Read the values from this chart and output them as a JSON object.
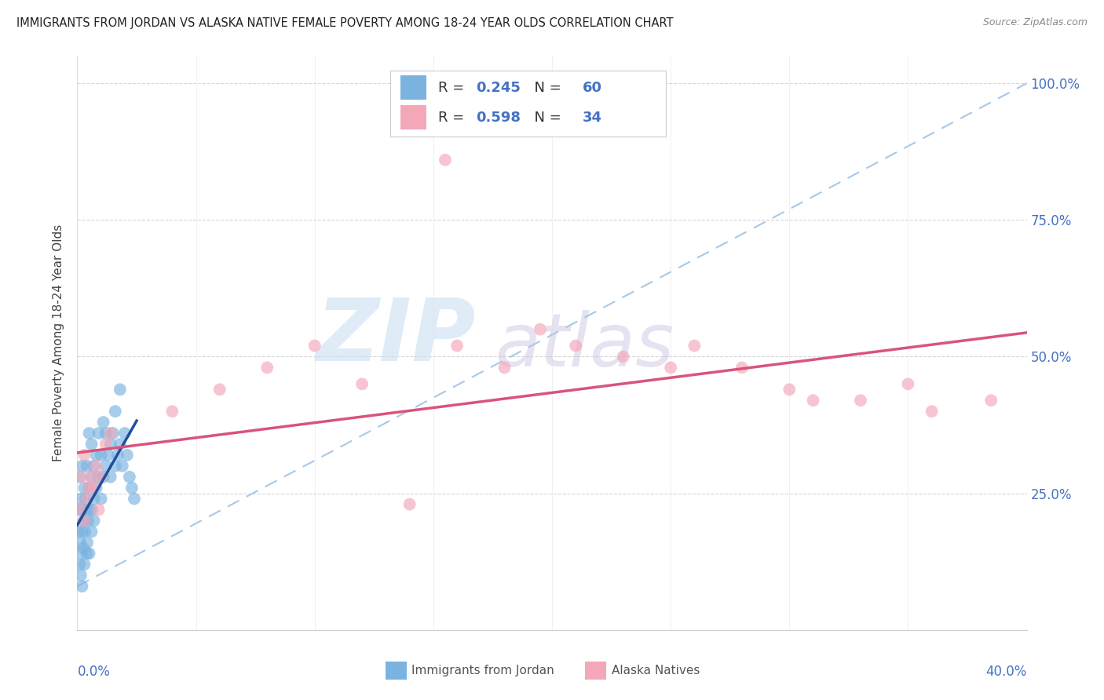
{
  "title": "IMMIGRANTS FROM JORDAN VS ALASKA NATIVE FEMALE POVERTY AMONG 18-24 YEAR OLDS CORRELATION CHART",
  "source": "Source: ZipAtlas.com",
  "ylabel": "Female Poverty Among 18-24 Year Olds",
  "xlim": [
    0.0,
    0.4
  ],
  "ylim": [
    0.0,
    1.05
  ],
  "yticks": [
    0.0,
    0.25,
    0.5,
    0.75,
    1.0
  ],
  "ytick_labels": [
    "",
    "25.0%",
    "50.0%",
    "75.0%",
    "100.0%"
  ],
  "r_jordan": 0.245,
  "n_jordan": 60,
  "r_alaska": 0.598,
  "n_alaska": 34,
  "accent_color": "#4472c4",
  "blue_dot_color": "#7ab3e0",
  "pink_dot_color": "#f4a7b9",
  "blue_line_color": "#1f4e9e",
  "pink_line_color": "#d9547a",
  "dashed_line_color": "#a8c8e8",
  "background_color": "#ffffff",
  "jordan_x": [
    0.0005,
    0.0008,
    0.001,
    0.001,
    0.0012,
    0.0015,
    0.0015,
    0.0018,
    0.002,
    0.002,
    0.002,
    0.0022,
    0.0025,
    0.0028,
    0.003,
    0.003,
    0.003,
    0.0032,
    0.0035,
    0.004,
    0.004,
    0.004,
    0.0042,
    0.0045,
    0.005,
    0.005,
    0.005,
    0.0052,
    0.006,
    0.006,
    0.006,
    0.0062,
    0.007,
    0.007,
    0.007,
    0.008,
    0.008,
    0.009,
    0.009,
    0.01,
    0.01,
    0.011,
    0.011,
    0.012,
    0.012,
    0.013,
    0.014,
    0.014,
    0.015,
    0.016,
    0.016,
    0.017,
    0.018,
    0.018,
    0.019,
    0.02,
    0.021,
    0.022,
    0.023,
    0.024
  ],
  "jordan_y": [
    0.18,
    0.22,
    0.12,
    0.28,
    0.16,
    0.1,
    0.24,
    0.14,
    0.08,
    0.18,
    0.3,
    0.22,
    0.15,
    0.2,
    0.12,
    0.26,
    0.2,
    0.18,
    0.24,
    0.14,
    0.22,
    0.3,
    0.16,
    0.2,
    0.14,
    0.26,
    0.36,
    0.22,
    0.18,
    0.28,
    0.34,
    0.22,
    0.2,
    0.3,
    0.24,
    0.26,
    0.32,
    0.28,
    0.36,
    0.24,
    0.32,
    0.28,
    0.38,
    0.3,
    0.36,
    0.32,
    0.34,
    0.28,
    0.36,
    0.3,
    0.4,
    0.32,
    0.34,
    0.44,
    0.3,
    0.36,
    0.32,
    0.28,
    0.26,
    0.24
  ],
  "alaska_x": [
    0.001,
    0.002,
    0.003,
    0.003,
    0.004,
    0.005,
    0.006,
    0.007,
    0.008,
    0.009,
    0.01,
    0.012,
    0.014,
    0.04,
    0.06,
    0.08,
    0.1,
    0.12,
    0.14,
    0.155,
    0.16,
    0.18,
    0.195,
    0.21,
    0.23,
    0.25,
    0.26,
    0.28,
    0.3,
    0.31,
    0.33,
    0.35,
    0.36,
    0.385
  ],
  "alaska_y": [
    0.22,
    0.28,
    0.2,
    0.32,
    0.24,
    0.26,
    0.28,
    0.26,
    0.3,
    0.22,
    0.28,
    0.34,
    0.36,
    0.4,
    0.44,
    0.48,
    0.52,
    0.45,
    0.23,
    0.86,
    0.52,
    0.48,
    0.55,
    0.52,
    0.5,
    0.48,
    0.52,
    0.48,
    0.44,
    0.42,
    0.42,
    0.45,
    0.4,
    0.42
  ]
}
